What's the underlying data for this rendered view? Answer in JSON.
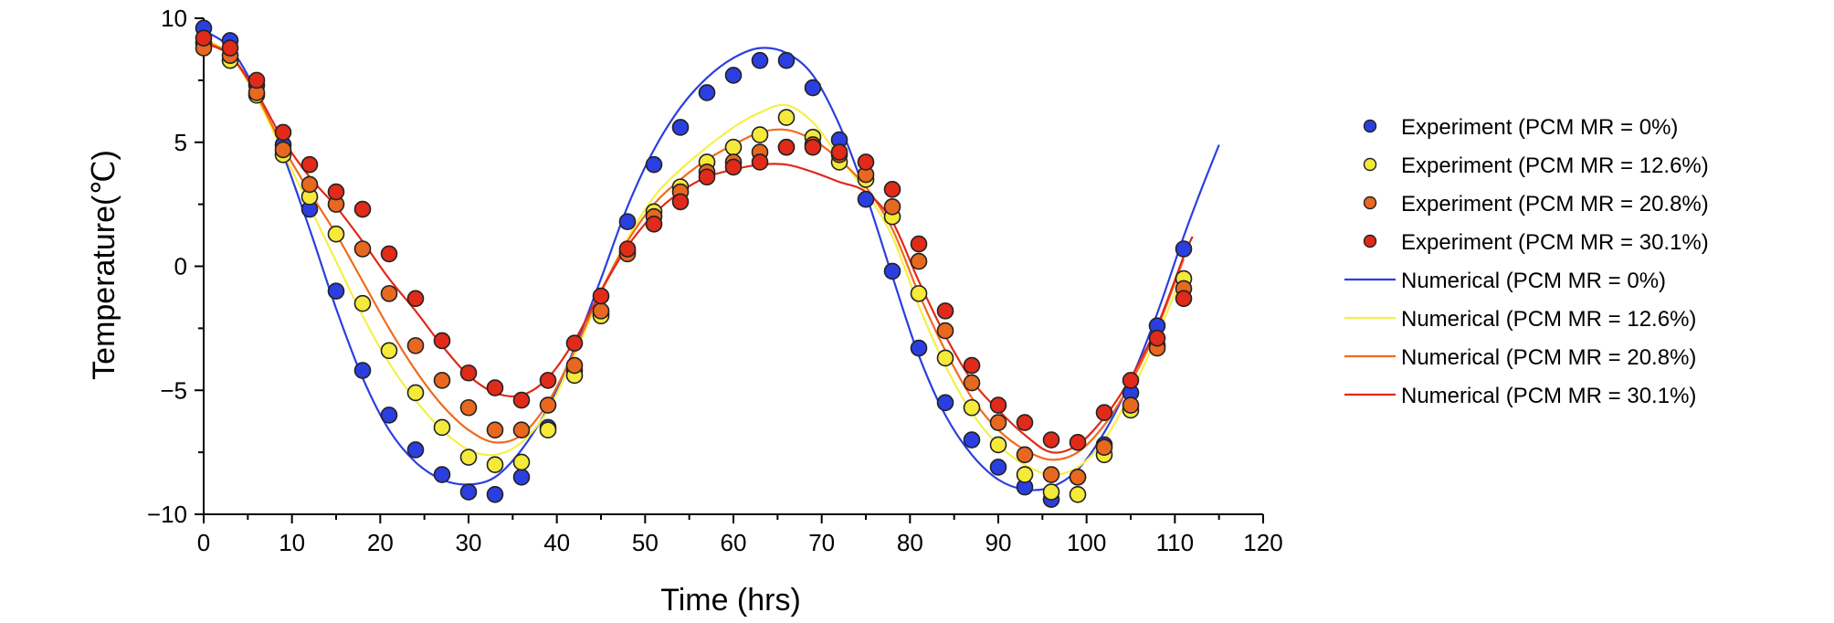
{
  "chart_data": {
    "type": "scatter",
    "title": "",
    "xlabel": "Time (hrs)",
    "ylabel": "Temperature(℃)",
    "xlim": [
      0,
      120
    ],
    "ylim": [
      -10,
      10
    ],
    "xticks": [
      0,
      10,
      20,
      30,
      40,
      50,
      60,
      70,
      80,
      90,
      100,
      110,
      120
    ],
    "yticks": [
      -10,
      -5,
      0,
      5,
      10
    ],
    "xtick_labels": [
      "0",
      "10",
      "20",
      "30",
      "40",
      "50",
      "60",
      "70",
      "80",
      "90",
      "100",
      "110",
      "120"
    ],
    "ytick_labels": [
      "−10",
      "−5",
      "0",
      "5",
      "10"
    ],
    "grid": false,
    "legend_position": "right",
    "experiment_series": [
      {
        "name": "Experiment (PCM MR = 0%)",
        "color": "#2b3fe0",
        "x": [
          0,
          3,
          6,
          9,
          12,
          15,
          18,
          21,
          24,
          27,
          30,
          33,
          36,
          39,
          42,
          45,
          48,
          51,
          54,
          57,
          60,
          63,
          66,
          69,
          72,
          75,
          78,
          81,
          84,
          87,
          90,
          93,
          96,
          99,
          102,
          105,
          108,
          111
        ],
        "y": [
          9.6,
          9.1,
          7.3,
          4.9,
          2.3,
          -1.0,
          -4.2,
          -6.0,
          -7.4,
          -8.4,
          -9.1,
          -9.2,
          -8.5,
          -6.5,
          -4.2,
          -1.9,
          1.8,
          4.1,
          5.6,
          7.0,
          7.7,
          8.3,
          8.3,
          7.2,
          5.1,
          2.7,
          -0.2,
          -3.3,
          -5.5,
          -7.0,
          -8.1,
          -8.9,
          -9.4,
          -8.5,
          -7.2,
          -5.1,
          -2.4,
          0.7
        ]
      },
      {
        "name": "Experiment (PCM MR = 12.6%)",
        "color": "#f5e93a",
        "x": [
          0,
          3,
          6,
          9,
          12,
          15,
          18,
          21,
          24,
          27,
          30,
          33,
          36,
          39,
          42,
          45,
          48,
          51,
          54,
          57,
          60,
          63,
          66,
          69,
          72,
          75,
          78,
          81,
          84,
          87,
          90,
          93,
          96,
          99,
          102,
          105,
          108,
          111
        ],
        "y": [
          9.0,
          8.3,
          6.9,
          4.5,
          2.8,
          1.3,
          -1.5,
          -3.4,
          -5.1,
          -6.5,
          -7.7,
          -8.0,
          -7.9,
          -6.6,
          -4.4,
          -2.0,
          0.6,
          2.2,
          3.2,
          4.2,
          4.8,
          5.3,
          6.0,
          5.2,
          4.2,
          3.5,
          2.0,
          -1.1,
          -3.7,
          -5.7,
          -7.2,
          -8.4,
          -9.1,
          -9.2,
          -7.6,
          -5.8,
          -3.2,
          -0.5
        ]
      },
      {
        "name": "Experiment (PCM MR = 20.8%)",
        "color": "#e8681f",
        "x": [
          0,
          3,
          6,
          9,
          12,
          15,
          18,
          21,
          24,
          27,
          30,
          33,
          36,
          39,
          42,
          45,
          48,
          51,
          54,
          57,
          60,
          63,
          66,
          69,
          72,
          75,
          78,
          81,
          84,
          87,
          90,
          93,
          96,
          99,
          102,
          105,
          108,
          111
        ],
        "y": [
          8.8,
          8.5,
          7.0,
          4.7,
          3.3,
          2.5,
          0.7,
          -1.1,
          -3.2,
          -4.6,
          -5.7,
          -6.6,
          -6.6,
          -5.6,
          -4.0,
          -1.8,
          0.5,
          2.0,
          3.0,
          3.8,
          4.2,
          4.6,
          4.8,
          4.9,
          4.5,
          3.7,
          2.4,
          0.2,
          -2.6,
          -4.7,
          -6.3,
          -7.6,
          -8.4,
          -8.5,
          -7.3,
          -5.6,
          -3.3,
          -0.9
        ]
      },
      {
        "name": "Experiment (PCM MR = 30.1%)",
        "color": "#e02a1a",
        "x": [
          0,
          3,
          6,
          9,
          12,
          15,
          18,
          21,
          24,
          27,
          30,
          33,
          36,
          39,
          42,
          45,
          48,
          51,
          54,
          57,
          60,
          63,
          66,
          69,
          72,
          75,
          78,
          81,
          84,
          87,
          90,
          93,
          96,
          99,
          102,
          105,
          108,
          111
        ],
        "y": [
          9.2,
          8.8,
          7.5,
          5.4,
          4.1,
          3.0,
          2.3,
          0.5,
          -1.3,
          -3.0,
          -4.3,
          -4.9,
          -5.4,
          -4.6,
          -3.1,
          -1.2,
          0.7,
          1.7,
          2.6,
          3.6,
          4.0,
          4.2,
          4.8,
          4.8,
          4.6,
          4.2,
          3.1,
          0.9,
          -1.8,
          -4.0,
          -5.6,
          -6.3,
          -7.0,
          -7.1,
          -5.9,
          -4.6,
          -2.9,
          -1.3
        ]
      }
    ],
    "numerical_series": [
      {
        "name": "Numerical (PCM MR = 0%)",
        "color": "#2b3fe0",
        "x": [
          0,
          3,
          6,
          9,
          12,
          15,
          18,
          21,
          24,
          27,
          30,
          33,
          36,
          39,
          42,
          45,
          48,
          51,
          54,
          57,
          60,
          63,
          66,
          69,
          72,
          75,
          78,
          81,
          84,
          87,
          90,
          93,
          96,
          99,
          102,
          105,
          108,
          111,
          113,
          115
        ],
        "y": [
          9.5,
          8.8,
          7.0,
          4.5,
          1.5,
          -1.7,
          -4.5,
          -6.6,
          -7.9,
          -8.6,
          -8.8,
          -8.5,
          -7.4,
          -5.7,
          -3.3,
          -0.5,
          2.4,
          4.7,
          6.4,
          7.6,
          8.4,
          8.8,
          8.6,
          7.7,
          5.7,
          2.9,
          -0.4,
          -3.6,
          -6.0,
          -7.6,
          -8.6,
          -9.0,
          -8.9,
          -8.2,
          -6.7,
          -4.6,
          -1.9,
          1.2,
          3.1,
          4.9
        ]
      },
      {
        "name": "Numerical (PCM MR = 12.6%)",
        "color": "#f5f046",
        "x": [
          0,
          3,
          6,
          9,
          12,
          15,
          18,
          21,
          24,
          27,
          30,
          33,
          36,
          39,
          42,
          45,
          48,
          51,
          54,
          57,
          60,
          63,
          66,
          69,
          72,
          75,
          78,
          81,
          84,
          87,
          90,
          93,
          96,
          99,
          102,
          105,
          108,
          111
        ],
        "y": [
          9.2,
          8.5,
          6.8,
          4.6,
          2.4,
          0.2,
          -2.0,
          -3.9,
          -5.4,
          -6.6,
          -7.4,
          -7.6,
          -7.1,
          -5.8,
          -3.6,
          -1.1,
          1.1,
          2.8,
          3.9,
          4.8,
          5.6,
          6.2,
          6.5,
          5.8,
          4.4,
          3.0,
          1.2,
          -1.6,
          -4.0,
          -5.9,
          -7.2,
          -8.0,
          -8.4,
          -8.1,
          -7.0,
          -5.1,
          -2.8,
          -0.2
        ]
      },
      {
        "name": "Numerical (PCM MR = 20.8%)",
        "color": "#f26a1e",
        "x": [
          0,
          3,
          6,
          9,
          12,
          15,
          18,
          21,
          24,
          27,
          30,
          33,
          36,
          39,
          42,
          45,
          48,
          51,
          54,
          57,
          60,
          63,
          66,
          69,
          72,
          75,
          78,
          81,
          84,
          87,
          90,
          93,
          96,
          99,
          102,
          105,
          108,
          111
        ],
        "y": [
          9.1,
          8.5,
          6.9,
          4.8,
          3.0,
          1.3,
          -0.6,
          -2.5,
          -4.2,
          -5.6,
          -6.6,
          -7.1,
          -6.8,
          -5.5,
          -3.4,
          -1.0,
          1.0,
          2.5,
          3.5,
          4.3,
          4.9,
          5.4,
          5.5,
          5.1,
          4.3,
          3.2,
          1.5,
          -1.1,
          -3.4,
          -5.3,
          -6.6,
          -7.4,
          -7.8,
          -7.5,
          -6.4,
          -4.7,
          -2.5,
          0.3
        ]
      },
      {
        "name": "Numerical (PCM MR = 30.1%)",
        "color": "#e02a1a",
        "x": [
          0,
          3,
          6,
          9,
          12,
          15,
          18,
          21,
          24,
          27,
          30,
          33,
          36,
          39,
          42,
          45,
          48,
          51,
          54,
          57,
          60,
          63,
          66,
          69,
          72,
          75,
          78,
          81,
          84,
          87,
          90,
          93,
          96,
          99,
          102,
          105,
          108,
          111,
          112
        ],
        "y": [
          9.0,
          8.5,
          7.0,
          5.1,
          3.6,
          2.4,
          1.0,
          -0.5,
          -1.8,
          -3.2,
          -4.4,
          -5.1,
          -5.2,
          -4.5,
          -3.0,
          -1.0,
          0.8,
          2.1,
          3.0,
          3.6,
          3.9,
          4.1,
          4.1,
          3.8,
          3.4,
          3.0,
          1.8,
          -0.6,
          -2.8,
          -4.6,
          -5.8,
          -6.8,
          -7.5,
          -7.2,
          -6.1,
          -4.5,
          -2.4,
          0.4,
          1.2
        ]
      }
    ]
  }
}
